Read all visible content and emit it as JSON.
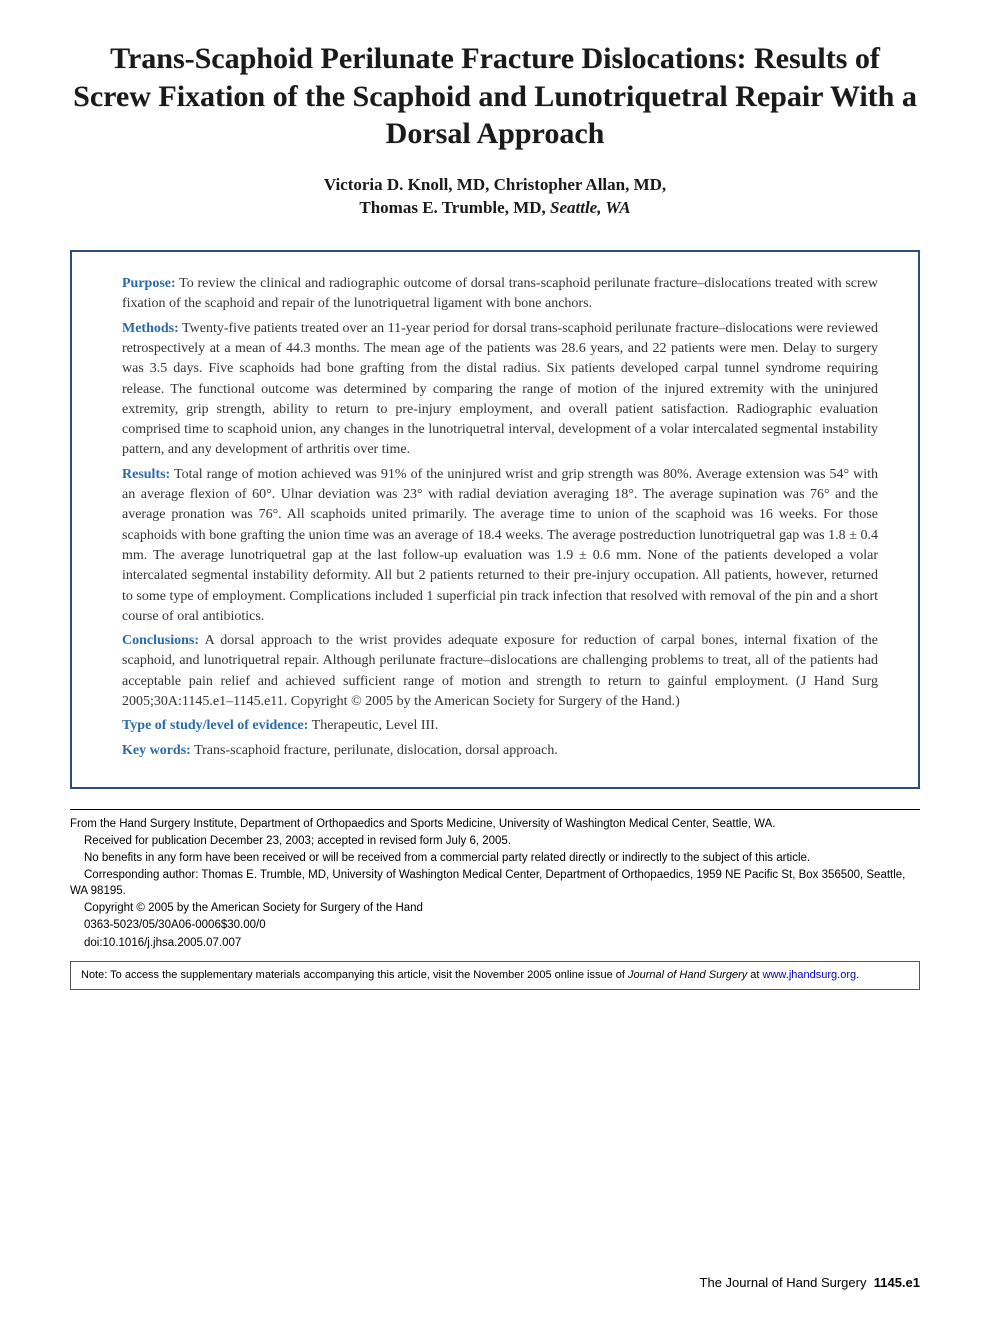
{
  "title": "Trans-Scaphoid Perilunate Fracture Dislocations: Results of Screw Fixation of the Scaphoid and Lunotriquetral Repair With a Dorsal Approach",
  "authors_line1": "Victoria D. Knoll, MD, Christopher Allan, MD,",
  "authors_line2": "Thomas E. Trumble, MD, ",
  "authors_location": "Seattle, WA",
  "abstract": {
    "purpose_label": "Purpose:",
    "purpose_text": " To review the clinical and radiographic outcome of dorsal trans-scaphoid perilunate fracture–dislocations treated with screw fixation of the scaphoid and repair of the lunotriquetral ligament with bone anchors.",
    "methods_label": "Methods:",
    "methods_text": " Twenty-five patients treated over an 11-year period for dorsal trans-scaphoid perilunate fracture–dislocations were reviewed retrospectively at a mean of 44.3 months. The mean age of the patients was 28.6 years, and 22 patients were men. Delay to surgery was 3.5 days. Five scaphoids had bone grafting from the distal radius. Six patients developed carpal tunnel syndrome requiring release. The functional outcome was determined by comparing the range of motion of the injured extremity with the uninjured extremity, grip strength, ability to return to pre-injury employment, and overall patient satisfaction. Radiographic evaluation comprised time to scaphoid union, any changes in the lunotriquetral interval, development of a volar intercalated segmental instability pattern, and any development of arthritis over time.",
    "results_label": "Results:",
    "results_text": " Total range of motion achieved was 91% of the uninjured wrist and grip strength was 80%. Average extension was 54° with an average flexion of 60°. Ulnar deviation was 23° with radial deviation averaging 18°. The average supination was 76° and the average pronation was 76°. All scaphoids united primarily. The average time to union of the scaphoid was 16 weeks. For those scaphoids with bone grafting the union time was an average of 18.4 weeks. The average postreduction lunotriquetral gap was 1.8 ± 0.4 mm. The average lunotriquetral gap at the last follow-up evaluation was 1.9 ± 0.6 mm. None of the patients developed a volar intercalated segmental instability deformity. All but 2 patients returned to their pre-injury occupation. All patients, however, returned to some type of employment. Complications included 1 superficial pin track infection that resolved with removal of the pin and a short course of oral antibiotics.",
    "conclusions_label": "Conclusions:",
    "conclusions_text": " A dorsal approach to the wrist provides adequate exposure for reduction of carpal bones, internal fixation of the scaphoid, and lunotriquetral repair. Although perilunate fracture–dislocations are challenging problems to treat, all of the patients had acceptable pain relief and achieved sufficient range of motion and strength to return to gainful employment. (J Hand Surg 2005;30A:1145.e1–1145.e11. Copyright © 2005 by the American Society for Surgery of the Hand.)",
    "study_type_label": "Type of study/level of evidence:",
    "study_type_text": " Therapeutic, Level III.",
    "keywords_label": "Key words:",
    "keywords_text": " Trans-scaphoid fracture, perilunate, dislocation, dorsal approach."
  },
  "footer": {
    "line1": "From the Hand Surgery Institute, Department of Orthopaedics and Sports Medicine, University of Washington Medical Center, Seattle, WA.",
    "line2": "Received for publication December 23, 2003; accepted in revised form July 6, 2005.",
    "line3": "No benefits in any form have been received or will be received from a commercial party related directly or indirectly to the subject of this article.",
    "line4": "Corresponding author: Thomas E. Trumble, MD, University of Washington Medical Center, Department of Orthopaedics, 1959 NE Pacific St, Box 356500, Seattle, WA 98195.",
    "line5": "Copyright © 2005 by the American Society for Surgery of the Hand",
    "line6": "0363-5023/05/30A06-0006$30.00/0",
    "line7": "doi:10.1016/j.jhsa.2005.07.007"
  },
  "note": {
    "prefix": "Note: To access the supplementary materials accompanying this article, visit the November 2005 online issue of ",
    "journal": "Journal of Hand Surgery",
    "middle": " at ",
    "link": "www.jhandsurg.org",
    "suffix": "."
  },
  "page_footer": {
    "journal": "The Journal of Hand Surgery",
    "page": "1145.e1"
  },
  "colors": {
    "box_border": "#2a4d7a",
    "section_label": "#2a6aa8",
    "link": "#0000cc"
  }
}
